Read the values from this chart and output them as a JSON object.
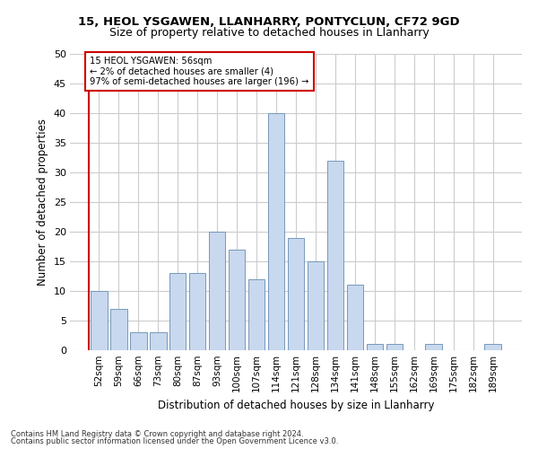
{
  "title1": "15, HEOL YSGAWEN, LLANHARRY, PONTYCLUN, CF72 9GD",
  "title2": "Size of property relative to detached houses in Llanharry",
  "xlabel": "Distribution of detached houses by size in Llanharry",
  "ylabel": "Number of detached properties",
  "categories": [
    "52sqm",
    "59sqm",
    "66sqm",
    "73sqm",
    "80sqm",
    "87sqm",
    "93sqm",
    "100sqm",
    "107sqm",
    "114sqm",
    "121sqm",
    "128sqm",
    "134sqm",
    "141sqm",
    "148sqm",
    "155sqm",
    "162sqm",
    "169sqm",
    "175sqm",
    "182sqm",
    "189sqm"
  ],
  "values": [
    10,
    7,
    3,
    3,
    13,
    13,
    20,
    17,
    12,
    40,
    19,
    15,
    32,
    11,
    1,
    1,
    0,
    1,
    0,
    0,
    1
  ],
  "bar_color": "#c8d8ee",
  "bar_edge_color": "#7799bb",
  "annotation_box_color": "#ffffff",
  "annotation_box_edge": "#cc0000",
  "vertical_line_color": "#cc0000",
  "annotation_line1": "15 HEOL YSGAWEN: 56sqm",
  "annotation_line2": "← 2% of detached houses are smaller (4)",
  "annotation_line3": "97% of semi-detached houses are larger (196) →",
  "ylim": [
    0,
    50
  ],
  "yticks": [
    0,
    5,
    10,
    15,
    20,
    25,
    30,
    35,
    40,
    45,
    50
  ],
  "footer1": "Contains HM Land Registry data © Crown copyright and database right 2024.",
  "footer2": "Contains public sector information licensed under the Open Government Licence v3.0.",
  "bg_color": "#ffffff",
  "plot_bg_color": "#ffffff",
  "grid_color": "#cccccc"
}
